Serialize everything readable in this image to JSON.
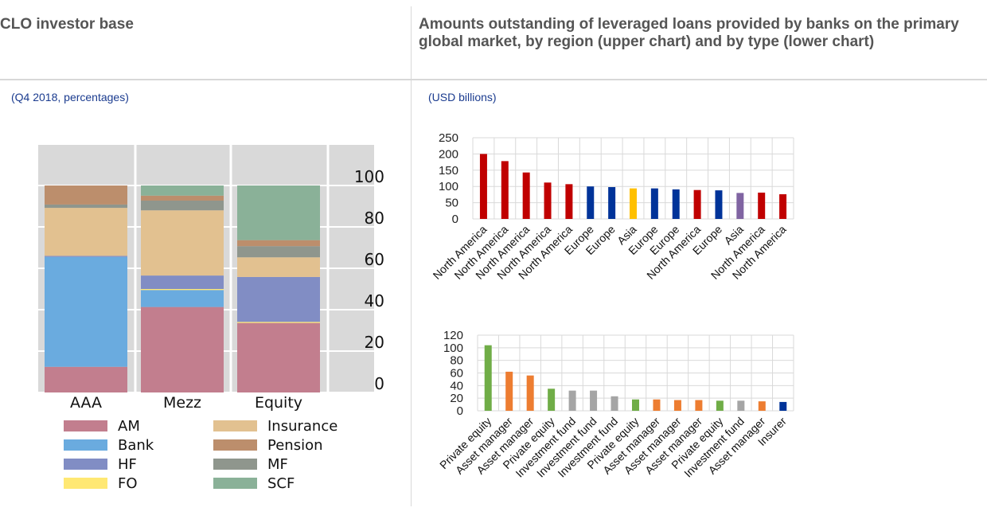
{
  "left_panel": {
    "title": "CLO investor base",
    "subtitle": "(Q4 2018, percentages)"
  },
  "right_panel": {
    "title": "Amounts outstanding of leveraged loans provided by banks on the primary global market, by region (upper chart) and by type (lower chart)",
    "subtitle": "(USD billions)"
  },
  "chart_data": [
    {
      "type": "bar",
      "stacked": true,
      "title": "CLO investor base",
      "subtitle": "(Q4 2018, percentages)",
      "categories": [
        "AAA",
        "Mezz",
        "Equity"
      ],
      "ylim": [
        0,
        100
      ],
      "yticks": [
        0,
        20,
        40,
        60,
        80,
        100
      ],
      "y_axis_side": "right",
      "grid": true,
      "legend_position": "bottom",
      "series": [
        {
          "name": "AM",
          "color": "#c27e8e",
          "values": [
            12.4,
            41.3,
            33.6
          ]
        },
        {
          "name": "Bank",
          "color": "#6aabdf",
          "values": [
            53.1,
            8.2,
            0
          ]
        },
        {
          "name": "FO",
          "color": "#ffe873",
          "values": [
            0,
            0.5,
            0.5
          ]
        },
        {
          "name": "HF",
          "color": "#818dc4",
          "values": [
            0.5,
            6.5,
            21.7
          ]
        },
        {
          "name": "Insurance",
          "color": "#e2c190",
          "values": [
            23.2,
            31.5,
            9.5
          ]
        },
        {
          "name": "MF",
          "color": "#8f968d",
          "values": [
            1.6,
            4.7,
            5.4
          ]
        },
        {
          "name": "Pension",
          "color": "#bc8e6c",
          "values": [
            9.2,
            2.4,
            2.9
          ]
        },
        {
          "name": "SCF",
          "color": "#8ab198",
          "values": [
            0,
            4.9,
            26.4
          ]
        }
      ],
      "legend": [
        {
          "name": "AM",
          "color": "#c27e8e"
        },
        {
          "name": "Insurance",
          "color": "#e2c190"
        },
        {
          "name": "Bank",
          "color": "#6aabdf"
        },
        {
          "name": "Pension",
          "color": "#bc8e6c"
        },
        {
          "name": "HF",
          "color": "#818dc4"
        },
        {
          "name": "MF",
          "color": "#8f968d"
        },
        {
          "name": "FO",
          "color": "#ffe873"
        },
        {
          "name": "SCF",
          "color": "#8ab198"
        }
      ]
    },
    {
      "type": "bar",
      "title": "by region (upper chart)",
      "categories": [
        "North America",
        "North America",
        "North America",
        "North America",
        "North America",
        "Europe",
        "Europe",
        "Asia",
        "Europe",
        "Europe",
        "North America",
        "Europe",
        "Asia",
        "North America",
        "North America"
      ],
      "values": [
        200,
        178,
        143,
        112,
        107,
        100,
        98,
        94,
        94,
        91,
        89,
        88,
        80,
        81,
        76
      ],
      "colors": [
        "#c00000",
        "#c00000",
        "#c00000",
        "#c00000",
        "#c00000",
        "#003399",
        "#003399",
        "#ffc000",
        "#003399",
        "#003399",
        "#c00000",
        "#003399",
        "#8064a2",
        "#c00000",
        "#c00000"
      ],
      "ylim": [
        0,
        250
      ],
      "yticks": [
        0,
        50,
        100,
        150,
        200,
        250
      ],
      "grid": true,
      "xlabel": "",
      "ylabel": ""
    },
    {
      "type": "bar",
      "title": "by type (lower chart)",
      "categories": [
        "Private equity",
        "Asset manager",
        "Asset manager",
        "Private equity",
        "Investment fund",
        "Investment fund",
        "Investment fund",
        "Private equity",
        "Asset manager",
        "Asset manager",
        "Asset manager",
        "Private equity",
        "Investment fund",
        "Asset manager",
        "Insurer"
      ],
      "values": [
        104,
        62,
        56,
        35,
        32,
        32,
        23,
        18,
        18,
        17,
        17,
        16,
        16,
        15,
        14
      ],
      "colors": [
        "#70ad47",
        "#ed7d31",
        "#ed7d31",
        "#70ad47",
        "#a5a5a5",
        "#a5a5a5",
        "#a5a5a5",
        "#70ad47",
        "#ed7d31",
        "#ed7d31",
        "#ed7d31",
        "#70ad47",
        "#a5a5a5",
        "#ed7d31",
        "#003399"
      ],
      "ylim": [
        0,
        120
      ],
      "yticks": [
        0,
        20,
        40,
        60,
        80,
        100,
        120
      ],
      "grid": true,
      "xlabel": "",
      "ylabel": ""
    }
  ]
}
